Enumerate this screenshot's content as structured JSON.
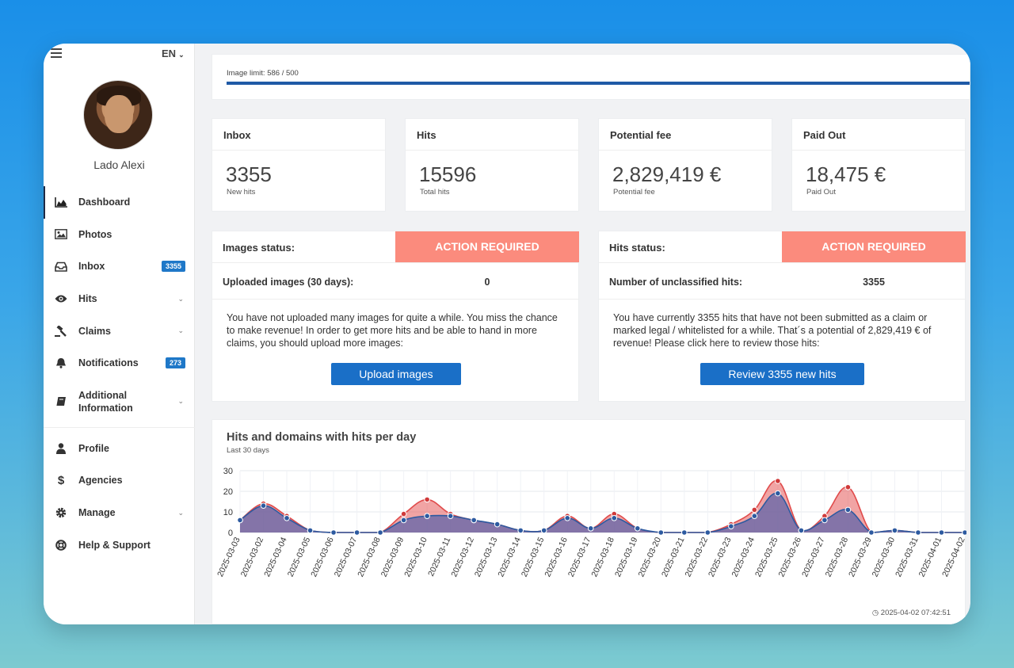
{
  "sidebar": {
    "lang": "EN",
    "user_name": "Lado Alexi",
    "items": [
      {
        "label": "Dashboard",
        "icon": "area-chart-icon"
      },
      {
        "label": "Photos",
        "icon": "image-icon"
      },
      {
        "label": "Inbox",
        "icon": "inbox-icon",
        "badge": "3355"
      },
      {
        "label": "Hits",
        "icon": "eye-icon"
      },
      {
        "label": "Claims",
        "icon": "gavel-icon"
      },
      {
        "label": "Notifications",
        "icon": "bell-icon",
        "badge": "273"
      },
      {
        "label": "Additional Information",
        "icon": "book-icon"
      },
      {
        "label": "Profile",
        "icon": "user-icon"
      },
      {
        "label": "Agencies",
        "icon": "dollar-icon"
      },
      {
        "label": "Manage",
        "icon": "cog-icon"
      },
      {
        "label": "Help & Support",
        "icon": "lifebuoy-icon"
      }
    ]
  },
  "limit": {
    "label": "Image limit: 586 / 500",
    "used": 586,
    "max": 500
  },
  "stats": [
    {
      "title": "Inbox",
      "value": "3355",
      "sub": "New hits"
    },
    {
      "title": "Hits",
      "value": "15596",
      "sub": "Total hits"
    },
    {
      "title": "Potential fee",
      "value": "2,829,419 €",
      "sub": "Potential fee"
    },
    {
      "title": "Paid Out",
      "value": "18,475 €",
      "sub": "Paid Out"
    }
  ],
  "images_status": {
    "label": "Images status:",
    "alert": "ACTION REQUIRED",
    "metric_label": "Uploaded images (30 days):",
    "metric_value": "0",
    "text": "You have not uploaded many images for quite a while. You miss the chance to make revenue! In order to get more hits and be able to hand in more claims, you should upload more images:",
    "button": "Upload images"
  },
  "hits_status": {
    "label": "Hits status:",
    "alert": "ACTION REQUIRED",
    "metric_label": "Number of unclassified hits:",
    "metric_value": "3355",
    "text": "You have currently 3355 hits that have not been submitted as a claim or marked legal / whitelisted for a while. That´s a potential of 2,829,419 € of revenue! Please click here to review those hits:",
    "button": "Review 3355 new hits"
  },
  "timestamp": "2025-04-02 07:42:51",
  "colors": {
    "alert": "#fb8b7d",
    "button": "#1a6fc7",
    "badge": "#1f78c8",
    "series_hits": "#e04b4b",
    "series_domains": "#2d5aa0"
  },
  "chart_data": {
    "type": "area",
    "title": "Hits and domains with hits per day",
    "subtitle": "Last 30 days",
    "ylim": [
      0,
      30
    ],
    "yticks": [
      0,
      10,
      20,
      30
    ],
    "categories": [
      "2025-03-03",
      "2025-03-02",
      "2025-03-04",
      "2025-03-05",
      "2025-03-06",
      "2025-03-07",
      "2025-03-08",
      "2025-03-09",
      "2025-03-10",
      "2025-03-11",
      "2025-03-12",
      "2025-03-13",
      "2025-03-14",
      "2025-03-15",
      "2025-03-16",
      "2025-03-17",
      "2025-03-18",
      "2025-03-19",
      "2025-03-20",
      "2025-03-21",
      "2025-03-22",
      "2025-03-23",
      "2025-03-24",
      "2025-03-25",
      "2025-03-26",
      "2025-03-27",
      "2025-03-28",
      "2025-03-29",
      "2025-03-30",
      "2025-03-31",
      "2025-04-01",
      "2025-04-02"
    ],
    "series": [
      {
        "name": "Hits",
        "values": [
          6,
          14,
          8,
          1,
          0,
          0,
          0,
          9,
          16,
          9,
          6,
          4,
          1,
          1,
          8,
          2,
          9,
          2,
          0,
          0,
          0,
          4,
          11,
          25,
          1,
          8,
          22,
          0,
          1,
          0,
          0,
          0
        ]
      },
      {
        "name": "Domains with hits",
        "values": [
          6,
          13,
          7,
          1,
          0,
          0,
          0,
          6,
          8,
          8,
          6,
          4,
          1,
          1,
          7,
          2,
          7,
          2,
          0,
          0,
          0,
          3,
          8,
          19,
          1,
          6,
          11,
          0,
          1,
          0,
          0,
          0
        ]
      }
    ]
  }
}
